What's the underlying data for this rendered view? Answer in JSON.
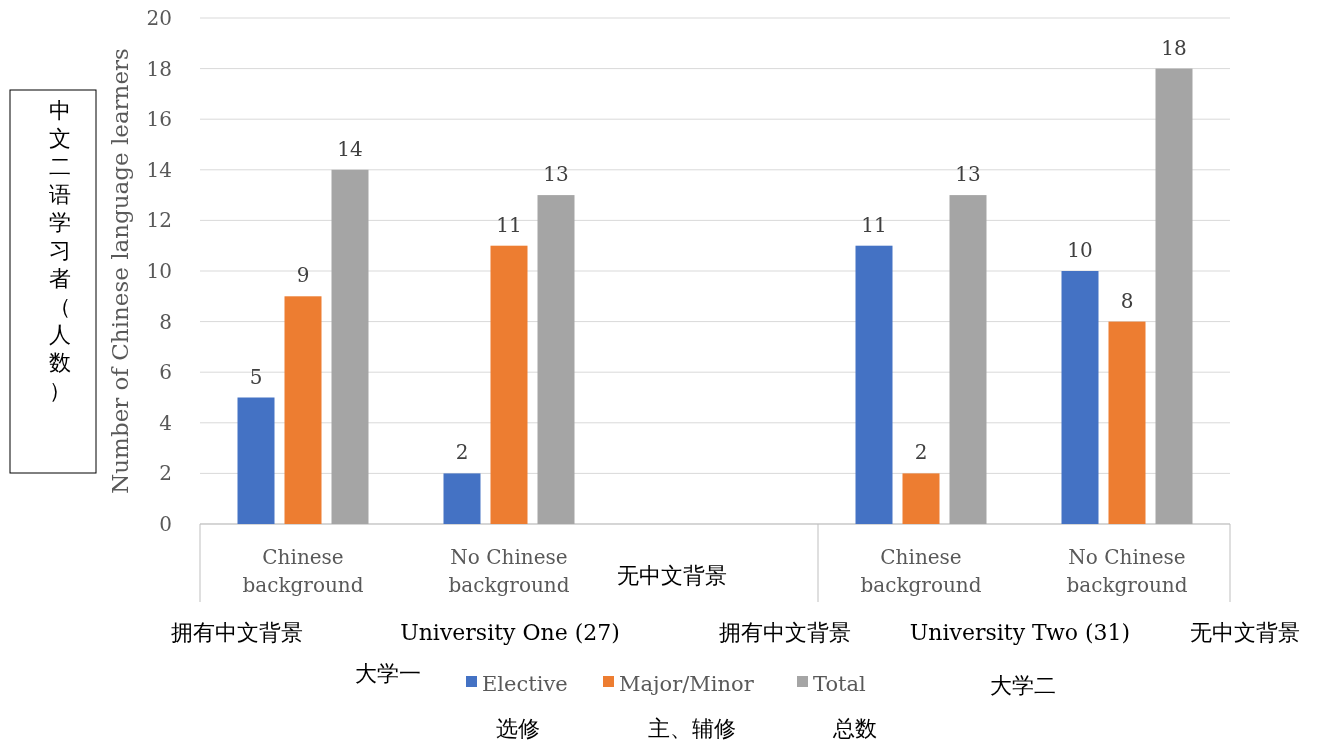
{
  "chart_data": {
    "type": "bar",
    "ylabel": "Number of Chinese language learners",
    "categories": [
      "Chinese background",
      "No Chinese background",
      null,
      "Chinese background",
      "No Chinese background"
    ],
    "series": [
      {
        "name": "Elective",
        "color": "#4472c4",
        "values": [
          5,
          2,
          null,
          11,
          10
        ]
      },
      {
        "name": "Major/Minor",
        "color": "#ed7d31",
        "values": [
          9,
          11,
          null,
          2,
          8
        ]
      },
      {
        "name": "Total",
        "color": "#a5a5a5",
        "values": [
          14,
          13,
          null,
          13,
          18
        ]
      }
    ],
    "ylim": [
      0,
      20
    ],
    "yticks": [
      0,
      2,
      4,
      6,
      8,
      10,
      12,
      14,
      16,
      18,
      20
    ],
    "grid": "y",
    "legend": "bottom",
    "data_labels": true,
    "annotations": [
      "中文二语学习者（人数）",
      "拥有中文背景",
      "University One (27)",
      "拥有中文背景",
      "University Two (31)",
      "无中文背景",
      "无中文背景",
      "大学一",
      "大学二",
      "选修",
      "主、辅修",
      "总数"
    ]
  }
}
